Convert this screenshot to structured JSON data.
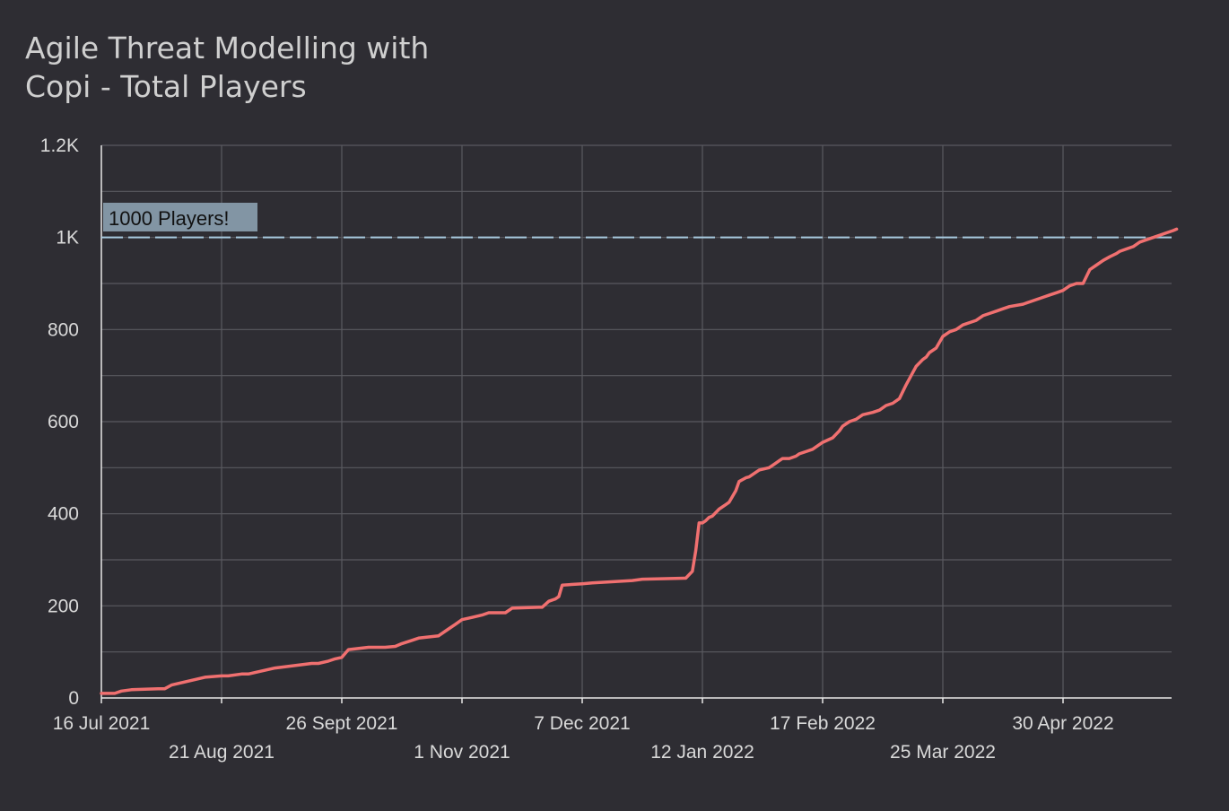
{
  "chart_data": {
    "type": "line",
    "title": "Agile Threat Modelling with Copi  - Total Players",
    "xlabel": "",
    "ylabel": "",
    "x_axis_type": "date",
    "xlim": [
      "2021-07-16",
      "2022-06-05"
    ],
    "ylim": [
      0,
      1200
    ],
    "grid": true,
    "x_tick_labels": [
      {
        "date": "2021-07-16",
        "label": "16 Jul 2021",
        "row": 1
      },
      {
        "date": "2021-08-21",
        "label": "21 Aug 2021",
        "row": 2
      },
      {
        "date": "2021-09-26",
        "label": "26 Sept 2021",
        "row": 1
      },
      {
        "date": "2021-11-01",
        "label": "1 Nov 2021",
        "row": 2
      },
      {
        "date": "2021-12-07",
        "label": "7 Dec 2021",
        "row": 1
      },
      {
        "date": "2022-01-12",
        "label": "12 Jan 2022",
        "row": 2
      },
      {
        "date": "2022-02-17",
        "label": "17 Feb 2022",
        "row": 1
      },
      {
        "date": "2022-03-25",
        "label": "25 Mar 2022",
        "row": 2
      },
      {
        "date": "2022-04-30",
        "label": "30 Apr 2022",
        "row": 1
      }
    ],
    "y_ticks": [
      {
        "value": 0,
        "label": "0"
      },
      {
        "value": 200,
        "label": "200"
      },
      {
        "value": 400,
        "label": "400"
      },
      {
        "value": 600,
        "label": "600"
      },
      {
        "value": 800,
        "label": "800"
      },
      {
        "value": 1000,
        "label": "1K"
      },
      {
        "value": 1200,
        "label": "1.2K"
      }
    ],
    "reference_line": {
      "value": 1000,
      "label": "1000 Players!",
      "color": "#a9cbe0"
    },
    "series": [
      {
        "color": "#f07070",
        "x": [
          "2021-07-16",
          "2021-07-20",
          "2021-07-22",
          "2021-07-25",
          "2021-08-02",
          "2021-08-04",
          "2021-08-06",
          "2021-08-16",
          "2021-08-21",
          "2021-08-23",
          "2021-08-27",
          "2021-08-29",
          "2021-09-06",
          "2021-09-17",
          "2021-09-19",
          "2021-09-22",
          "2021-09-24",
          "2021-09-26",
          "2021-09-28",
          "2021-10-04",
          "2021-10-09",
          "2021-10-12",
          "2021-10-14",
          "2021-10-17",
          "2021-10-19",
          "2021-10-25",
          "2021-10-28",
          "2021-10-30",
          "2021-11-01",
          "2021-11-04",
          "2021-11-07",
          "2021-11-09",
          "2021-11-14",
          "2021-11-16",
          "2021-11-24",
          "2021-11-25",
          "2021-11-27",
          "2021-11-29",
          "2021-11-30",
          "2021-12-01",
          "2021-12-07",
          "2021-12-10",
          "2021-12-22",
          "2021-12-25",
          "2022-01-07",
          "2022-01-09",
          "2022-01-10",
          "2022-01-11",
          "2022-01-12",
          "2022-01-13",
          "2022-01-14",
          "2022-01-15",
          "2022-01-17",
          "2022-01-19",
          "2022-01-20",
          "2022-01-22",
          "2022-01-23",
          "2022-01-25",
          "2022-01-26",
          "2022-01-29",
          "2022-02-01",
          "2022-02-03",
          "2022-02-04",
          "2022-02-05",
          "2022-02-07",
          "2022-02-09",
          "2022-02-10",
          "2022-02-12",
          "2022-02-14",
          "2022-02-15",
          "2022-02-17",
          "2022-02-20",
          "2022-02-22",
          "2022-02-23",
          "2022-02-25",
          "2022-02-27",
          "2022-03-01",
          "2022-03-04",
          "2022-03-06",
          "2022-03-08",
          "2022-03-10",
          "2022-03-12",
          "2022-03-14",
          "2022-03-17",
          "2022-03-19",
          "2022-03-20",
          "2022-03-21",
          "2022-03-23",
          "2022-03-25",
          "2022-03-27",
          "2022-03-29",
          "2022-03-31",
          "2022-04-02",
          "2022-04-04",
          "2022-04-06",
          "2022-04-08",
          "2022-04-10",
          "2022-04-12",
          "2022-04-14",
          "2022-04-18",
          "2022-04-20",
          "2022-04-24",
          "2022-04-26",
          "2022-04-28",
          "2022-04-30",
          "2022-05-02",
          "2022-05-04",
          "2022-05-06",
          "2022-05-08",
          "2022-05-10",
          "2022-05-12",
          "2022-05-14",
          "2022-05-16",
          "2022-05-17",
          "2022-05-19",
          "2022-05-21",
          "2022-05-23",
          "2022-05-25",
          "2022-05-27",
          "2022-05-29",
          "2022-05-31",
          "2022-06-02",
          "2022-06-03"
        ],
        "values": [
          10,
          10,
          15,
          18,
          20,
          20,
          28,
          45,
          48,
          48,
          52,
          52,
          65,
          75,
          75,
          80,
          85,
          88,
          105,
          110,
          110,
          112,
          118,
          125,
          130,
          135,
          150,
          160,
          170,
          175,
          180,
          185,
          185,
          195,
          197,
          197,
          210,
          215,
          220,
          245,
          248,
          250,
          255,
          258,
          260,
          275,
          320,
          380,
          380,
          385,
          392,
          395,
          410,
          420,
          425,
          450,
          470,
          478,
          480,
          495,
          500,
          510,
          515,
          520,
          520,
          525,
          530,
          535,
          540,
          545,
          555,
          565,
          580,
          590,
          600,
          605,
          615,
          620,
          625,
          635,
          640,
          650,
          680,
          720,
          735,
          740,
          750,
          760,
          785,
          795,
          800,
          810,
          815,
          820,
          830,
          835,
          840,
          845,
          850,
          855,
          860,
          870,
          875,
          880,
          885,
          895,
          900,
          900,
          930,
          940,
          950,
          958,
          965,
          970,
          975,
          980,
          990,
          995,
          1000,
          1005,
          1010,
          1015,
          1018
        ]
      }
    ]
  }
}
